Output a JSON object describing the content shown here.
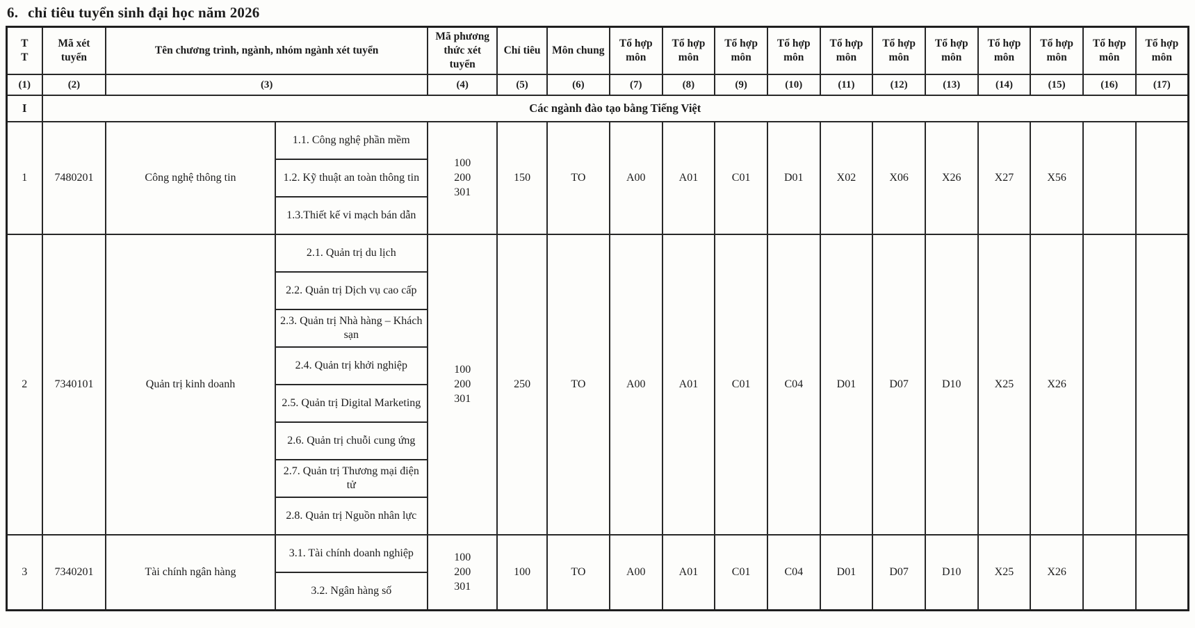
{
  "page": {
    "title_no": "6.",
    "title": "chỉ tiêu tuyển sinh đại học năm 2026"
  },
  "table": {
    "header": {
      "columns": [
        {
          "key": "tt",
          "label": "T\nT",
          "num": "(1)",
          "span": 1
        },
        {
          "key": "ma_xet_tuyen",
          "label": "Mã xét tuyển",
          "num": "(2)",
          "span": 1
        },
        {
          "key": "ten",
          "label": "Tên chương trình, ngành, nhóm ngành xét tuyển",
          "num": "(3)",
          "span": 2
        },
        {
          "key": "ma_phuong_thuc",
          "label": "Mã phương thức xét tuyển",
          "num": "(4)",
          "span": 1
        },
        {
          "key": "chi_tieu",
          "label": "Chỉ tiêu",
          "num": "(5)",
          "span": 1
        },
        {
          "key": "mon_chung",
          "label": "Môn chung",
          "num": "(6)",
          "span": 1
        },
        {
          "key": "to_hop_7",
          "label": "Tổ hợp môn",
          "num": "(7)",
          "span": 1
        },
        {
          "key": "to_hop_8",
          "label": "Tổ hợp môn",
          "num": "(8)",
          "span": 1
        },
        {
          "key": "to_hop_9",
          "label": "Tổ hợp môn",
          "num": "(9)",
          "span": 1
        },
        {
          "key": "to_hop_10",
          "label": "Tổ hợp môn",
          "num": "(10)",
          "span": 1
        },
        {
          "key": "to_hop_11",
          "label": "Tổ hợp môn",
          "num": "(11)",
          "span": 1
        },
        {
          "key": "to_hop_12",
          "label": "Tổ hợp môn",
          "num": "(12)",
          "span": 1
        },
        {
          "key": "to_hop_13",
          "label": "Tổ hợp môn",
          "num": "(13)",
          "span": 1
        },
        {
          "key": "to_hop_14",
          "label": "Tổ hợp môn",
          "num": "(14)",
          "span": 1
        },
        {
          "key": "to_hop_15",
          "label": "Tổ hợp môn",
          "num": "(15)",
          "span": 1
        },
        {
          "key": "to_hop_16",
          "label": "Tổ hợp môn",
          "num": "(16)",
          "span": 1
        },
        {
          "key": "to_hop_17",
          "label": "Tổ hợp môn",
          "num": "(17)",
          "span": 1
        }
      ]
    },
    "section": {
      "index": "I",
      "label": "Các ngành đào tạo bằng Tiếng Việt"
    },
    "groups": [
      {
        "tt": "1",
        "ma_xet_tuyen": "7480201",
        "nganh": "Công nghệ thông tin",
        "chuong_trinh": [
          "1.1. Công nghệ phần mềm",
          "1.2. Kỹ thuật an toàn thông tin",
          "1.3.Thiết kế vi mạch bán dẫn"
        ],
        "ma_phuong_thuc": "100\n200\n301",
        "chi_tieu": "150",
        "mon_chung": "TO",
        "to_hop": [
          "A00",
          "A01",
          "C01",
          "D01",
          "X02",
          "X06",
          "X26",
          "X27",
          "X56",
          "",
          ""
        ]
      },
      {
        "tt": "2",
        "ma_xet_tuyen": "7340101",
        "nganh": "Quản trị kinh doanh",
        "chuong_trinh": [
          "2.1. Quản trị du lịch",
          "2.2. Quản trị Dịch vụ cao cấp",
          "2.3. Quản trị Nhà hàng – Khách sạn",
          "2.4. Quản trị khởi nghiệp",
          "2.5. Quản trị Digital Marketing",
          "2.6. Quản trị chuỗi cung ứng",
          "2.7. Quản trị Thương mại điện tử",
          "2.8. Quản trị Nguồn nhân lực"
        ],
        "ma_phuong_thuc": "100\n200\n301",
        "chi_tieu": "250",
        "mon_chung": "TO",
        "to_hop": [
          "A00",
          "A01",
          "C01",
          "C04",
          "D01",
          "D07",
          "D10",
          "X25",
          "X26",
          "",
          ""
        ]
      },
      {
        "tt": "3",
        "ma_xet_tuyen": "7340201",
        "nganh": "Tài chính ngân hàng",
        "chuong_trinh": [
          "3.1. Tài chính doanh nghiệp",
          "3.2. Ngân hàng số"
        ],
        "ma_phuong_thuc": "100\n200\n301",
        "chi_tieu": "100",
        "mon_chung": "TO",
        "to_hop": [
          "A00",
          "A01",
          "C01",
          "C04",
          "D01",
          "D07",
          "D10",
          "X25",
          "X26",
          "",
          ""
        ]
      }
    ]
  }
}
